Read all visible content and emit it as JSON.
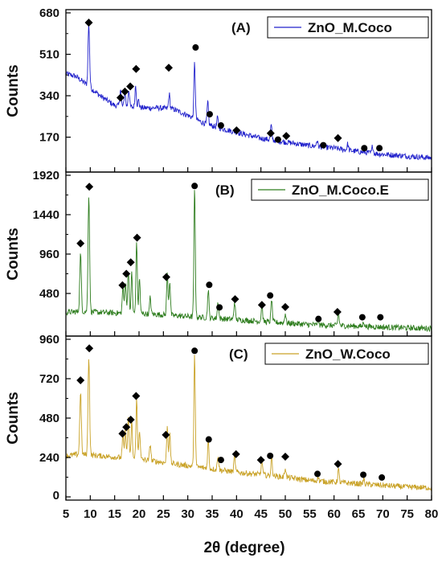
{
  "chart_data": [
    {
      "type": "line",
      "panel_label": "(A)",
      "ylabel": "Counts",
      "ylim": [
        40,
        680
      ],
      "yticks": [
        170,
        340,
        510,
        680
      ],
      "xlim": [
        5,
        80
      ],
      "legend": "top-right",
      "series": [
        {
          "name": "ZnO_M.Coco",
          "color": "#2222cc",
          "background": [
            [
              5,
              430
            ],
            [
              7,
              420
            ],
            [
              9,
              390
            ],
            [
              12,
              340
            ],
            [
              15,
              300
            ],
            [
              18,
              295
            ],
            [
              21,
              290
            ],
            [
              24,
              290
            ],
            [
              27,
              285
            ],
            [
              30,
              260
            ],
            [
              33,
              230
            ],
            [
              36,
              210
            ],
            [
              40,
              190
            ],
            [
              45,
              165
            ],
            [
              50,
              150
            ],
            [
              55,
              135
            ],
            [
              60,
              125
            ],
            [
              65,
              110
            ],
            [
              70,
              100
            ],
            [
              75,
              92
            ],
            [
              80,
              85
            ]
          ],
          "peaks": [
            [
              9.7,
              255
            ],
            [
              16.2,
              70
            ],
            [
              17.1,
              60
            ],
            [
              17.9,
              70
            ],
            [
              19.3,
              90
            ],
            [
              19.9,
              30
            ],
            [
              26.2,
              60
            ],
            [
              31.4,
              230
            ],
            [
              34.1,
              90
            ],
            [
              36.1,
              40
            ],
            [
              47.1,
              60
            ],
            [
              56.5,
              25
            ],
            [
              62.8,
              25
            ],
            [
              67.9,
              30
            ]
          ]
        }
      ],
      "markers": [
        {
          "shape": "diamond",
          "x": 9.7,
          "y": 640
        },
        {
          "shape": "diamond",
          "x": 16.2,
          "y": 332
        },
        {
          "shape": "diamond",
          "x": 17.1,
          "y": 357
        },
        {
          "shape": "diamond",
          "x": 18.2,
          "y": 378
        },
        {
          "shape": "diamond",
          "x": 19.4,
          "y": 450
        },
        {
          "shape": "diamond",
          "x": 26.1,
          "y": 455
        },
        {
          "shape": "circle",
          "x": 31.6,
          "y": 538
        },
        {
          "shape": "circle",
          "x": 34.5,
          "y": 264
        },
        {
          "shape": "circle",
          "x": 36.8,
          "y": 218
        },
        {
          "shape": "diamond",
          "x": 40.0,
          "y": 198
        },
        {
          "shape": "diamond",
          "x": 47.0,
          "y": 186
        },
        {
          "shape": "circle",
          "x": 48.5,
          "y": 160
        },
        {
          "shape": "diamond",
          "x": 50.2,
          "y": 175
        },
        {
          "shape": "circle",
          "x": 57.8,
          "y": 137
        },
        {
          "shape": "diamond",
          "x": 60.8,
          "y": 166
        },
        {
          "shape": "circle",
          "x": 66.2,
          "y": 125
        },
        {
          "shape": "circle",
          "x": 69.3,
          "y": 125
        }
      ]
    },
    {
      "type": "line",
      "panel_label": "(B)",
      "ylabel": "Counts",
      "ylim": [
        0,
        1920
      ],
      "yticks": [
        480,
        960,
        1440,
        1920
      ],
      "xlim": [
        5,
        80
      ],
      "legend": "top-right",
      "series": [
        {
          "name": "ZnO_M.Coco.E",
          "color": "#2e7d1e",
          "background": [
            [
              5,
              250
            ],
            [
              8,
              260
            ],
            [
              12,
              250
            ],
            [
              16,
              240
            ],
            [
              20,
              235
            ],
            [
              25,
              220
            ],
            [
              30,
              200
            ],
            [
              35,
              180
            ],
            [
              40,
              160
            ],
            [
              45,
              140
            ],
            [
              50,
              120
            ],
            [
              55,
              100
            ],
            [
              60,
              90
            ],
            [
              65,
              80
            ],
            [
              70,
              70
            ],
            [
              75,
              60
            ],
            [
              80,
              55
            ]
          ],
          "peaks": [
            [
              8.0,
              700
            ],
            [
              9.7,
              1420
            ],
            [
              16.7,
              320
            ],
            [
              17.2,
              400
            ],
            [
              17.8,
              540
            ],
            [
              18.5,
              500
            ],
            [
              19.5,
              880
            ],
            [
              20.1,
              420
            ],
            [
              22.3,
              200
            ],
            [
              25.8,
              500
            ],
            [
              26.3,
              420
            ],
            [
              31.4,
              1560
            ],
            [
              34.2,
              350
            ],
            [
              36.2,
              200
            ],
            [
              39.6,
              220
            ],
            [
              45.2,
              200
            ],
            [
              47.2,
              280
            ],
            [
              50.0,
              120
            ],
            [
              56.7,
              60
            ],
            [
              60.9,
              160
            ],
            [
              66.1,
              60
            ]
          ]
        }
      ],
      "markers": [
        {
          "shape": "diamond",
          "x": 8.0,
          "y": 1090
        },
        {
          "shape": "diamond",
          "x": 9.8,
          "y": 1780
        },
        {
          "shape": "diamond",
          "x": 16.6,
          "y": 580
        },
        {
          "shape": "diamond",
          "x": 17.4,
          "y": 720
        },
        {
          "shape": "diamond",
          "x": 18.3,
          "y": 860
        },
        {
          "shape": "diamond",
          "x": 19.6,
          "y": 1160
        },
        {
          "shape": "diamond",
          "x": 25.6,
          "y": 680
        },
        {
          "shape": "circle",
          "x": 31.4,
          "y": 1790
        },
        {
          "shape": "circle",
          "x": 34.4,
          "y": 585
        },
        {
          "shape": "circle",
          "x": 36.5,
          "y": 310
        },
        {
          "shape": "diamond",
          "x": 39.7,
          "y": 410
        },
        {
          "shape": "diamond",
          "x": 45.2,
          "y": 340
        },
        {
          "shape": "circle",
          "x": 46.9,
          "y": 455
        },
        {
          "shape": "diamond",
          "x": 50.0,
          "y": 315
        },
        {
          "shape": "circle",
          "x": 56.8,
          "y": 170
        },
        {
          "shape": "diamond",
          "x": 60.7,
          "y": 255
        },
        {
          "shape": "circle",
          "x": 65.8,
          "y": 190
        },
        {
          "shape": "circle",
          "x": 69.5,
          "y": 190
        }
      ]
    },
    {
      "type": "line",
      "panel_label": "(C)",
      "ylabel": "Counts",
      "ylim": [
        0,
        960
      ],
      "yticks": [
        0,
        240,
        480,
        720,
        960
      ],
      "xlim": [
        5,
        80
      ],
      "legend": "top-right",
      "series": [
        {
          "name": "ZnO_W.Coco",
          "color": "#c9a227",
          "background": [
            [
              5,
              250
            ],
            [
              8,
              260
            ],
            [
              12,
              250
            ],
            [
              16,
              240
            ],
            [
              20,
              230
            ],
            [
              25,
              210
            ],
            [
              30,
              190
            ],
            [
              35,
              170
            ],
            [
              40,
              150
            ],
            [
              45,
              135
            ],
            [
              50,
              120
            ],
            [
              55,
              100
            ],
            [
              60,
              90
            ],
            [
              65,
              80
            ],
            [
              70,
              70
            ],
            [
              75,
              60
            ],
            [
              80,
              55
            ]
          ],
          "peaks": [
            [
              8.0,
              380
            ],
            [
              9.7,
              600
            ],
            [
              16.7,
              140
            ],
            [
              17.2,
              170
            ],
            [
              17.8,
              250
            ],
            [
              18.5,
              230
            ],
            [
              19.5,
              360
            ],
            [
              20.1,
              180
            ],
            [
              22.3,
              100
            ],
            [
              25.8,
              220
            ],
            [
              26.3,
              180
            ],
            [
              31.4,
              680
            ],
            [
              34.2,
              170
            ],
            [
              36.2,
              90
            ],
            [
              39.6,
              100
            ],
            [
              45.2,
              90
            ],
            [
              47.2,
              120
            ],
            [
              50.0,
              60
            ],
            [
              56.7,
              30
            ],
            [
              60.9,
              80
            ],
            [
              66.1,
              30
            ]
          ]
        }
      ],
      "markers": [
        {
          "shape": "diamond",
          "x": 8.0,
          "y": 710
        },
        {
          "shape": "diamond",
          "x": 9.8,
          "y": 905
        },
        {
          "shape": "diamond",
          "x": 16.6,
          "y": 385
        },
        {
          "shape": "diamond",
          "x": 17.4,
          "y": 425
        },
        {
          "shape": "diamond",
          "x": 18.3,
          "y": 470
        },
        {
          "shape": "diamond",
          "x": 19.4,
          "y": 615
        },
        {
          "shape": "diamond",
          "x": 25.5,
          "y": 378
        },
        {
          "shape": "circle",
          "x": 31.4,
          "y": 890
        },
        {
          "shape": "circle",
          "x": 34.3,
          "y": 350
        },
        {
          "shape": "circle",
          "x": 36.8,
          "y": 225
        },
        {
          "shape": "diamond",
          "x": 39.9,
          "y": 260
        },
        {
          "shape": "diamond",
          "x": 45.0,
          "y": 225
        },
        {
          "shape": "circle",
          "x": 46.9,
          "y": 250
        },
        {
          "shape": "diamond",
          "x": 50.0,
          "y": 245
        },
        {
          "shape": "circle",
          "x": 56.6,
          "y": 140
        },
        {
          "shape": "diamond",
          "x": 60.8,
          "y": 200
        },
        {
          "shape": "circle",
          "x": 66.0,
          "y": 135
        },
        {
          "shape": "circle",
          "x": 69.8,
          "y": 118
        }
      ]
    }
  ],
  "shared_x": {
    "label": "2θ (degree)",
    "ticks": [
      5,
      10,
      15,
      20,
      25,
      30,
      35,
      40,
      45,
      50,
      55,
      60,
      65,
      70,
      75,
      80
    ],
    "lim": [
      5,
      80
    ]
  }
}
